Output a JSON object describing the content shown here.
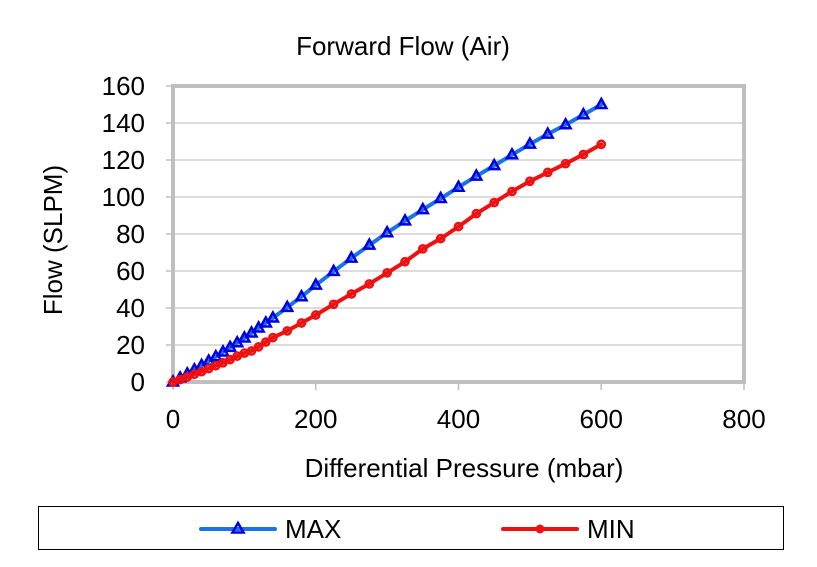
{
  "chart_data": {
    "type": "line",
    "title": "Forward Flow (Air)",
    "xlabel": "Differential Pressure (mbar)",
    "ylabel": "Flow (SLPM)",
    "xlim": [
      0,
      800
    ],
    "ylim": [
      0,
      160
    ],
    "xticks": [
      0,
      200,
      400,
      600,
      800
    ],
    "yticks": [
      0,
      20,
      40,
      60,
      80,
      100,
      120,
      140,
      160
    ],
    "grid": "horizontal",
    "legend_position": "bottom",
    "series": [
      {
        "name": "MAX",
        "line_color": "#1874e8",
        "marker_color": "#0000e0",
        "marker": "triangle",
        "x": [
          0,
          10,
          20,
          30,
          40,
          50,
          60,
          70,
          80,
          90,
          100,
          110,
          120,
          130,
          140,
          160,
          180,
          200,
          225,
          250,
          275,
          300,
          325,
          350,
          375,
          400,
          425,
          450,
          475,
          500,
          525,
          550,
          575,
          600
        ],
        "y": [
          0,
          2.2,
          4.4,
          6.6,
          8.9,
          11.3,
          13.7,
          16.2,
          18.7,
          21.2,
          23.8,
          26.5,
          29.2,
          31.9,
          34.6,
          40.3,
          46.1,
          52.4,
          59.8,
          67.0,
          74.0,
          80.7,
          87.1,
          93.2,
          99.2,
          105.3,
          111.3,
          117.0,
          122.8,
          128.6,
          134.0,
          139.0,
          144.5,
          150.0
        ]
      },
      {
        "name": "MIN",
        "line_color": "#ee1111",
        "marker_color": "#ee1111",
        "marker": "circle",
        "x": [
          0,
          10,
          20,
          30,
          40,
          50,
          60,
          70,
          80,
          90,
          100,
          110,
          120,
          130,
          140,
          160,
          180,
          200,
          225,
          250,
          275,
          300,
          325,
          350,
          375,
          400,
          425,
          450,
          475,
          500,
          525,
          550,
          575,
          600
        ],
        "y": [
          0,
          1.3,
          2.7,
          4.2,
          5.6,
          7.2,
          8.8,
          10.4,
          12.1,
          14.0,
          15.6,
          16.8,
          19.0,
          21.6,
          24.0,
          27.6,
          31.9,
          36.2,
          42.0,
          47.6,
          53.0,
          59.0,
          65.0,
          72.0,
          77.5,
          84.0,
          91.0,
          97.0,
          103.0,
          108.5,
          113.3,
          118.0,
          123.0,
          128.5
        ]
      }
    ]
  },
  "legend": {
    "items": [
      {
        "label": "MAX"
      },
      {
        "label": "MIN"
      }
    ]
  }
}
